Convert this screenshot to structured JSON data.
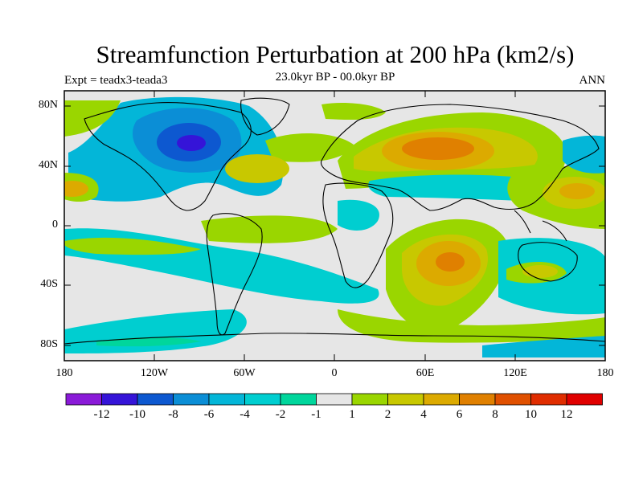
{
  "title": "Streamfunction Perturbation at 200 hPa (km2/s)",
  "subtitle": "23.0kyr BP - 00.0kyr BP",
  "left_label": "Expt = teadx3-teada3",
  "right_label": "ANN",
  "y_ticks": [
    "80N",
    "40N",
    "0",
    "40S",
    "80S"
  ],
  "x_ticks": [
    "180",
    "120W",
    "60W",
    "0",
    "60E",
    "120E",
    "180"
  ],
  "colorbar": {
    "labels": [
      "-12",
      "-10",
      "-8",
      "-6",
      "-4",
      "-2",
      "-1",
      "1",
      "2",
      "4",
      "6",
      "8",
      "10",
      "12"
    ],
    "colors": [
      "#8a1ad8",
      "#3514d8",
      "#0d58d0",
      "#0b8ed6",
      "#03b6d8",
      "#00ced0",
      "#00d69c",
      "#e6e6e6",
      "#9ad600",
      "#c8c800",
      "#dcaa00",
      "#e08000",
      "#e05000",
      "#e02d00",
      "#e00000"
    ]
  },
  "fill_colors": {
    "background": "#e6e6e6",
    "blue_strong": "#0b8ed6",
    "blue_mid": "#03b6d8",
    "cyan": "#00ced0",
    "green_neg": "#00d69c",
    "green_pos": "#9ad600",
    "yellow": "#c8c800",
    "orange": "#dcaa00",
    "dark_orange": "#e08000",
    "deep_blue": "#0d58d0",
    "violet_blue": "#3514d8"
  }
}
